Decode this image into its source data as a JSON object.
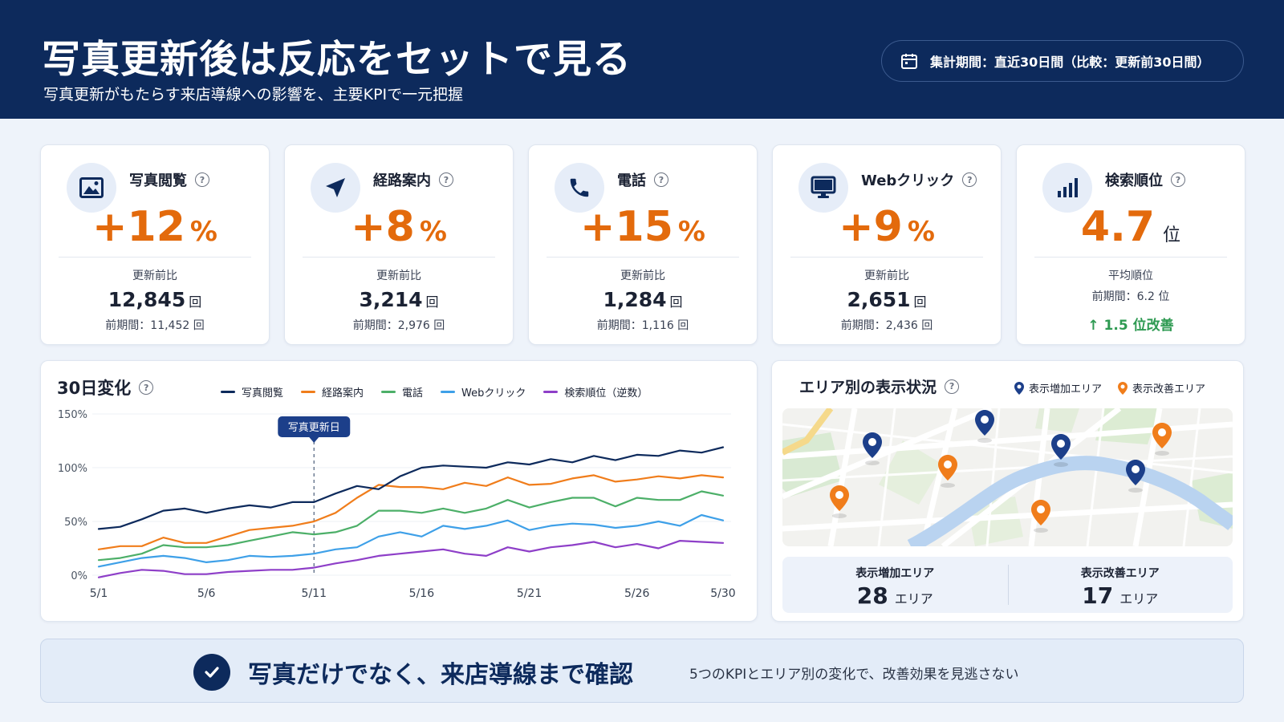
{
  "header": {
    "title": "写真更新後は反応をセットで見る",
    "subtitle": "写真更新がもたらす来店導線への影響を、主要KPIで一元把握",
    "period": "集計期間：直近30日間（比較：更新前30日間）"
  },
  "kpis": [
    {
      "title": "写真閲覧",
      "value": "+12",
      "unit": "%",
      "label": "更新前比",
      "count": "12,845",
      "count_unit": "回",
      "prev": "前期間：11,452 回",
      "icon": "image-icon"
    },
    {
      "title": "経路案内",
      "value": "+8",
      "unit": "%",
      "label": "更新前比",
      "count": "3,214",
      "count_unit": "回",
      "prev": "前期間：2,976 回",
      "icon": "navigation-arrow-icon"
    },
    {
      "title": "電話",
      "value": "+15",
      "unit": "%",
      "label": "更新前比",
      "count": "1,284",
      "count_unit": "回",
      "prev": "前期間：1,116 回",
      "icon": "phone-icon"
    },
    {
      "title": "Webクリック",
      "value": "+9",
      "unit": "%",
      "label": "更新前比",
      "count": "2,651",
      "count_unit": "回",
      "prev": "前期間：2,436 回",
      "icon": "monitor-icon"
    },
    {
      "title": "検索順位",
      "value": "4.7",
      "unit": "位",
      "label": "平均順位",
      "prev": "前期間：6.2 位",
      "improve": "↑ 1.5 位改善",
      "icon": "bar-chart-icon"
    }
  ],
  "chart": {
    "title": "30日変化",
    "annotation": "写真更新日"
  },
  "chart_data": {
    "type": "line",
    "x": [
      "5/1",
      "5/2",
      "5/3",
      "5/4",
      "5/5",
      "5/6",
      "5/7",
      "5/8",
      "5/9",
      "5/10",
      "5/11",
      "5/12",
      "5/13",
      "5/14",
      "5/15",
      "5/16",
      "5/17",
      "5/18",
      "5/19",
      "5/20",
      "5/21",
      "5/22",
      "5/23",
      "5/24",
      "5/25",
      "5/26",
      "5/27",
      "5/28",
      "5/29",
      "5/30"
    ],
    "xticks": [
      "5/1",
      "5/6",
      "5/11",
      "5/16",
      "5/21",
      "5/26",
      "5/30"
    ],
    "ylim": [
      0,
      150
    ],
    "yticks": [
      "0%",
      "50%",
      "100%",
      "150%"
    ],
    "annotation_x": "5/11",
    "series": [
      {
        "name": "写真閲覧",
        "color": "#0d2a5c",
        "values": [
          43,
          45,
          52,
          60,
          62,
          58,
          62,
          65,
          63,
          68,
          68,
          76,
          83,
          80,
          92,
          100,
          102,
          101,
          100,
          105,
          103,
          108,
          105,
          111,
          107,
          112,
          111,
          116,
          114,
          119
        ]
      },
      {
        "name": "経路案内",
        "color": "#f07d1b",
        "values": [
          24,
          27,
          27,
          35,
          30,
          30,
          36,
          42,
          44,
          46,
          50,
          58,
          72,
          84,
          82,
          82,
          80,
          86,
          83,
          91,
          84,
          85,
          90,
          93,
          87,
          89,
          92,
          90,
          93,
          91
        ]
      },
      {
        "name": "電話",
        "color": "#4caf68",
        "values": [
          14,
          16,
          20,
          28,
          26,
          26,
          28,
          32,
          36,
          40,
          38,
          40,
          46,
          60,
          60,
          58,
          62,
          58,
          62,
          70,
          63,
          68,
          72,
          72,
          64,
          72,
          70,
          70,
          78,
          74
        ]
      },
      {
        "name": "Webクリック",
        "color": "#3ea0e8",
        "values": [
          8,
          12,
          16,
          18,
          16,
          12,
          14,
          18,
          17,
          18,
          20,
          24,
          26,
          36,
          40,
          36,
          46,
          43,
          46,
          51,
          42,
          46,
          48,
          47,
          44,
          46,
          50,
          46,
          56,
          51
        ]
      },
      {
        "name": "検索順位（逆数）",
        "color": "#8e3fc8",
        "values": [
          -2,
          2,
          5,
          4,
          1,
          1,
          3,
          4,
          5,
          5,
          7,
          11,
          14,
          18,
          20,
          22,
          24,
          20,
          18,
          26,
          22,
          26,
          28,
          31,
          26,
          29,
          25,
          32,
          31,
          30
        ]
      }
    ]
  },
  "map": {
    "title": "エリア別の表示状況",
    "legend_increase": "表示増加エリア",
    "legend_improve": "表示改善エリア",
    "stat_increase_label": "表示増加エリア",
    "stat_increase_value": "28",
    "stat_increase_unit": "エリア",
    "stat_improve_label": "表示改善エリア",
    "stat_improve_value": "17",
    "stat_improve_unit": "エリア"
  },
  "banner": {
    "main": "写真だけでなく、来店導線まで確認",
    "sub": "5つのKPIとエリア別の変化で、改善効果を見逃さない"
  },
  "colors": {
    "navy": "#0d2a5c",
    "accent_orange": "#e36a0c",
    "improve_green": "#2e9a52",
    "pin_blue": "#1c3f8a",
    "pin_orange": "#f07d1b"
  }
}
